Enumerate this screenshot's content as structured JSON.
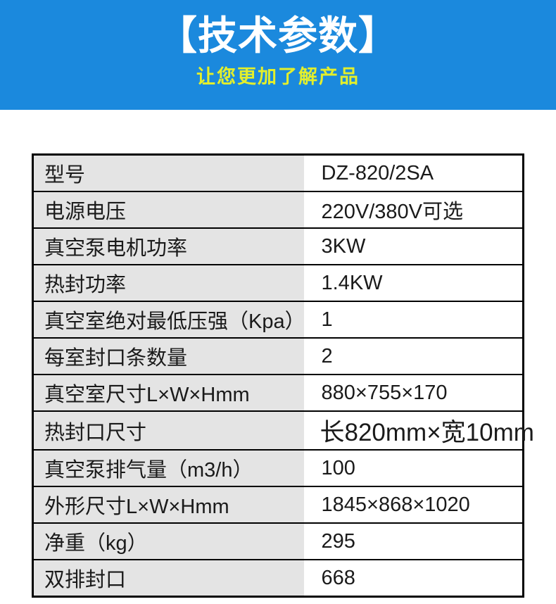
{
  "header": {
    "title": "【技术参数】",
    "subtitle": "让您更加了解产品",
    "bg_color": "#1b89dd",
    "title_color": "#ffffff",
    "subtitle_color": "#e3ef2c"
  },
  "table": {
    "label_bg": "#e4e4e4",
    "border_color": "#000000",
    "rows": [
      {
        "label": "型号",
        "value": "DZ-820/2SA"
      },
      {
        "label": "电源电压",
        "value": "220V/380V可选"
      },
      {
        "label": "真空泵电机功率",
        "value": "3KW"
      },
      {
        "label": "热封功率",
        "value": "1.4KW"
      },
      {
        "label": "真空室绝对最低压强（Kpa）",
        "value": "1"
      },
      {
        "label": "每室封口条数量",
        "value": "2"
      },
      {
        "label": "真空室尺寸L×W×Hmm",
        "value": "880×755×170"
      },
      {
        "label": "热封口尺寸",
        "value": "长820mm×宽10mm"
      },
      {
        "label": "真空泵排气量（m3/h）",
        "value": "100"
      },
      {
        "label": "外形尺寸L×W×Hmm",
        "value": "1845×868×1020"
      },
      {
        "label": "净重（kg）",
        "value": "295"
      },
      {
        "label": "双排封口",
        "value": "668"
      }
    ]
  }
}
